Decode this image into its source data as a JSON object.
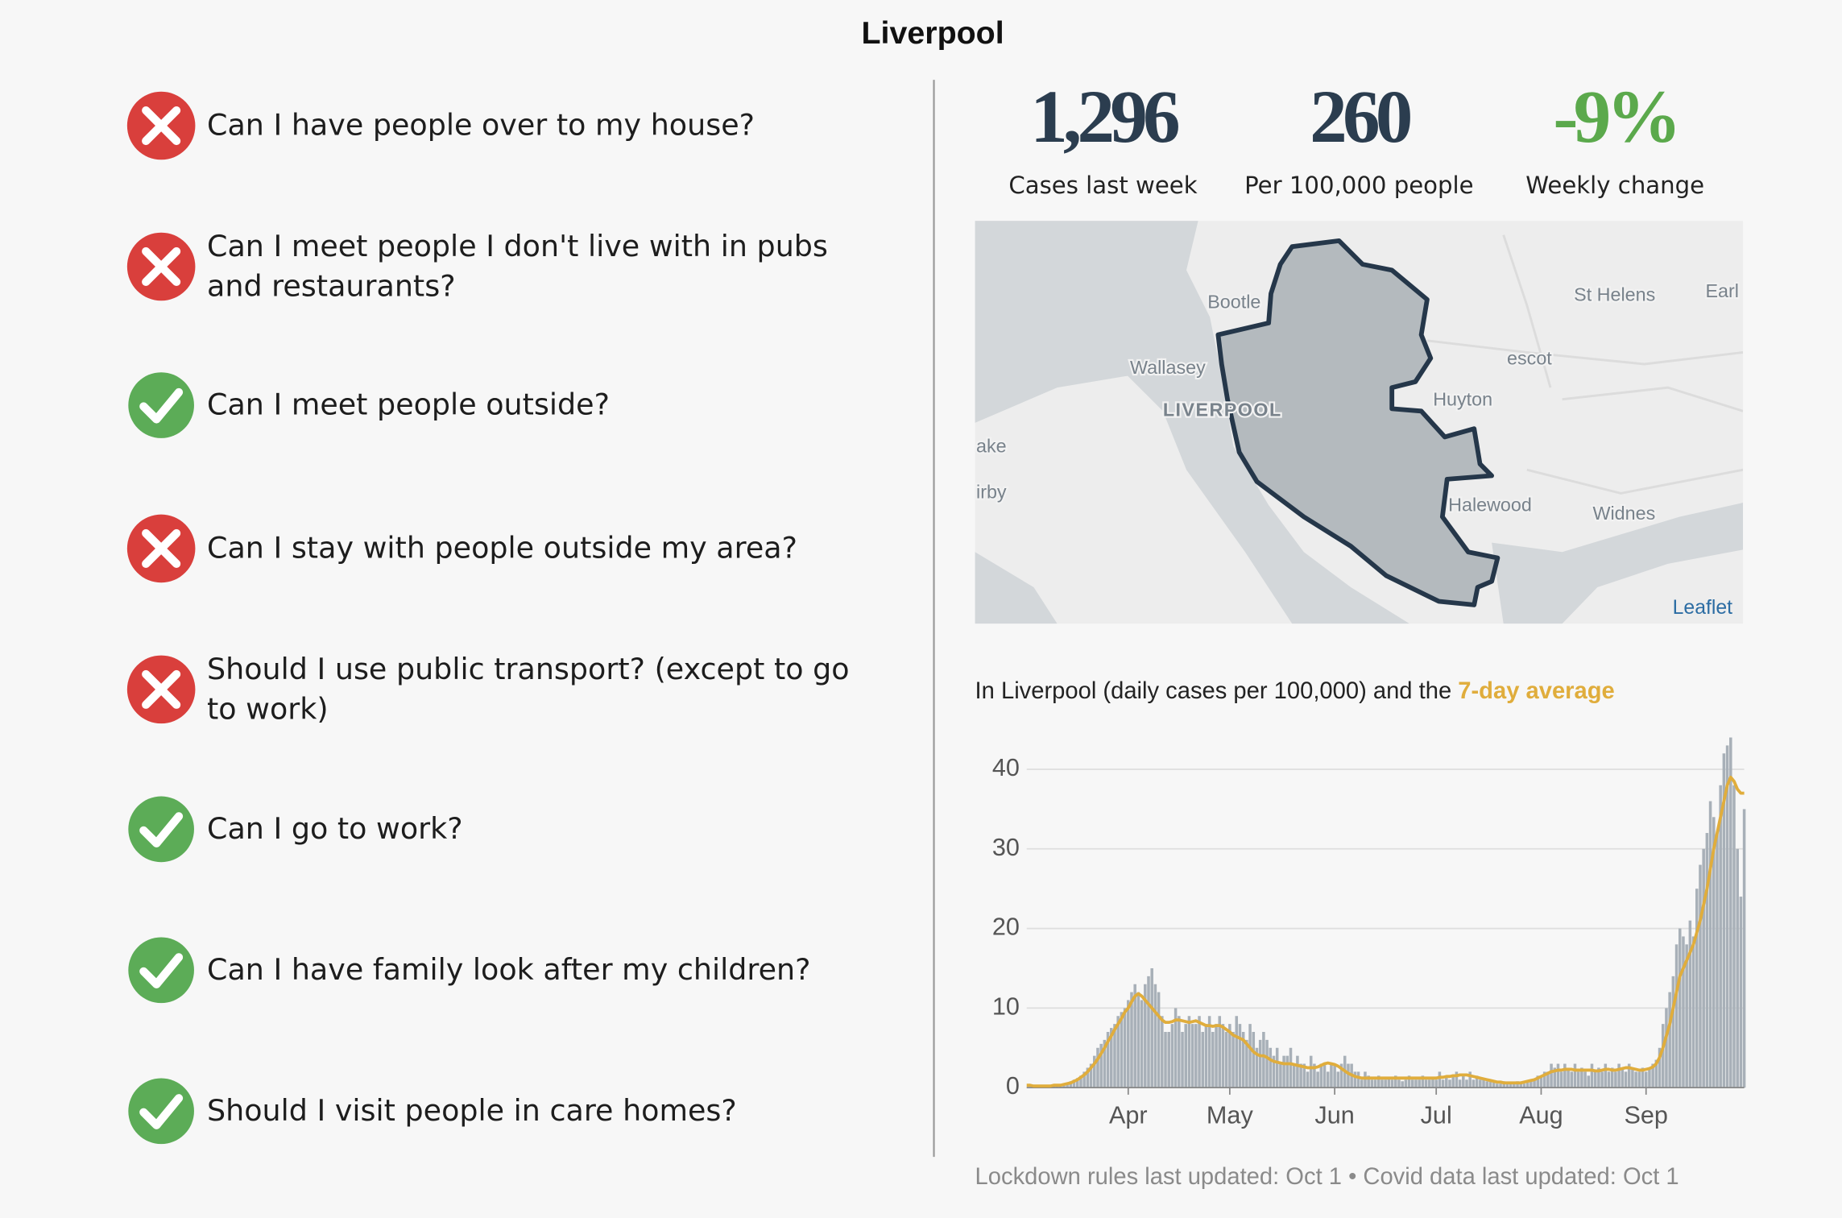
{
  "title": "Liverpool",
  "questions": [
    "Can I have people over to my house?",
    "Can I meet people I don't live with in pubs and restaurants?",
    "Can I meet people outside?",
    "Can I stay with people outside my area?",
    "Should I use public transport? (except to go to work)",
    "Can I go to work?",
    "Can I have family look after my children?",
    "Should I visit people in care homes?"
  ],
  "stats": [
    {
      "value": "1,296",
      "label": "Cases last week"
    },
    {
      "value": "260",
      "label": "Per 100,000 people"
    },
    {
      "value": "-9%",
      "label": "Weekly change"
    }
  ],
  "map": {
    "labels": [
      "Bootle",
      "St Helens",
      "Earl",
      "escot",
      "Wallasey",
      "LIVERPOOL",
      "Huyton",
      "ake",
      "irby",
      "Halewood",
      "Widnes"
    ],
    "attribution": "Leaflet"
  },
  "chart_data": {
    "type": "bar",
    "subtitle": "In Liverpool (daily cases per 100,000) and the ",
    "categories": [
      null,
      null,
      null,
      null,
      null,
      null,
      null,
      null,
      null,
      null,
      null,
      null,
      null,
      null,
      null,
      null,
      null,
      null,
      null,
      null,
      null,
      null,
      null,
      null,
      null,
      null,
      null,
      null,
      null,
      null,
      "Apr",
      null,
      null,
      null,
      null,
      null,
      null,
      null,
      null,
      null,
      null,
      null,
      null,
      null,
      null,
      null,
      null,
      null,
      null,
      null,
      null,
      null,
      null,
      null,
      null,
      null,
      null,
      null,
      null,
      null,
      "May",
      null,
      null,
      null,
      null,
      null,
      null,
      null,
      null,
      null,
      null,
      null,
      null,
      null,
      null,
      null,
      null,
      null,
      null,
      null,
      null,
      null,
      null,
      null,
      null,
      null,
      null,
      null,
      null,
      null,
      null,
      "Jun",
      null,
      null,
      null,
      null,
      null,
      null,
      null,
      null,
      null,
      null,
      null,
      null,
      null,
      null,
      null,
      null,
      null,
      null,
      null,
      null,
      null,
      null,
      null,
      null,
      null,
      null,
      null,
      null,
      null,
      "Jul",
      null,
      null,
      null,
      null,
      null,
      null,
      null,
      null,
      null,
      null,
      null,
      null,
      null,
      null,
      null,
      null,
      null,
      null,
      null,
      null,
      null,
      null,
      null,
      null,
      null,
      null,
      null,
      null,
      null,
      null,
      "Aug",
      null,
      null,
      null,
      null,
      null,
      null,
      null,
      null,
      null,
      null,
      null,
      null,
      null,
      null,
      null,
      null,
      null,
      null,
      null,
      null,
      null,
      null,
      null,
      null,
      null,
      null,
      null,
      null,
      null,
      null,
      "Sep",
      null,
      null,
      null,
      null,
      null,
      null,
      null,
      null,
      null,
      null,
      null,
      null,
      null,
      null,
      null,
      null,
      null,
      null,
      null,
      null,
      null,
      null,
      null,
      null,
      null,
      null,
      null,
      null,
      null
    ],
    "values": [
      0,
      0,
      0,
      0,
      0,
      0,
      0,
      0.2,
      0.2,
      0.3,
      0.3,
      0.5,
      0.5,
      0.8,
      1,
      1.2,
      1.5,
      2,
      2.5,
      3,
      4,
      5,
      5.5,
      6,
      7,
      7.5,
      8,
      9,
      9.5,
      10,
      11,
      12,
      13,
      12,
      11,
      13,
      14,
      15,
      13,
      12,
      9,
      7,
      7,
      8,
      10,
      9,
      7,
      8,
      9,
      8,
      8,
      9,
      7,
      8,
      9,
      7,
      8,
      9,
      8,
      7,
      8,
      7,
      9,
      8,
      7,
      6,
      8,
      7,
      5,
      6,
      7,
      6,
      5,
      4,
      5,
      3,
      4,
      4,
      5,
      3,
      4,
      3,
      3,
      2,
      4,
      3,
      2,
      3,
      3,
      2,
      3,
      3,
      2,
      3,
      4,
      3,
      3,
      2,
      2,
      1,
      2,
      1.5,
      1,
      1,
      1.5,
      1,
      1,
      1.2,
      1,
      1.5,
      1,
      0.8,
      1,
      1.5,
      1,
      1,
      1,
      1.5,
      1,
      1,
      1.3,
      1,
      2,
      1,
      1.5,
      1,
      1.5,
      2,
      1,
      1.5,
      1,
      2,
      1,
      1.5,
      1,
      1,
      0.8,
      1,
      0.8,
      0.5,
      0.5,
      0.8,
      0.5,
      0.7,
      0.5,
      0.8,
      0.5,
      0.5,
      0.7,
      0.8,
      1,
      1.5,
      1.5,
      2,
      2,
      3,
      2.5,
      3,
      2,
      3,
      2.5,
      2,
      3,
      2,
      2.5,
      2,
      1.5,
      3,
      2,
      2.5,
      2,
      3,
      2,
      2.5,
      2,
      3,
      2.5,
      2,
      3,
      2.5,
      2,
      2,
      2.5,
      2,
      2.5,
      3,
      3.5,
      5,
      8,
      10,
      12,
      14,
      18,
      20,
      19,
      18,
      21,
      19,
      25,
      28,
      30,
      32,
      36,
      34,
      32,
      38,
      42,
      43,
      44,
      38,
      30,
      24,
      35
    ],
    "color": "#a8b0b8",
    "average": {
      "name": "7-day average",
      "color": "#e0ad3c",
      "values": [
        0.3,
        0.3,
        0.2,
        0.2,
        0.2,
        0.2,
        0.2,
        0.2,
        0.3,
        0.3,
        0.3,
        0.4,
        0.5,
        0.6,
        0.8,
        1,
        1.3,
        1.6,
        2,
        2.5,
        3,
        3.6,
        4.3,
        5,
        5.8,
        6.5,
        7.3,
        8,
        8.7,
        9.5,
        10,
        10.8,
        11.5,
        11.8,
        11.5,
        11,
        10.5,
        10,
        9.5,
        9,
        8.5,
        8.2,
        8.2,
        8.3,
        8.5,
        8.5,
        8.4,
        8.3,
        8.2,
        8.3,
        8.4,
        8.2,
        8,
        7.8,
        7.8,
        7.7,
        7.8,
        7.8,
        7.6,
        7.3,
        7,
        6.6,
        6.4,
        6.2,
        6,
        5.5,
        5,
        4.5,
        4.2,
        4,
        4,
        3.8,
        3.5,
        3.3,
        3.2,
        3.1,
        3,
        3,
        3,
        2.9,
        2.8,
        2.7,
        2.6,
        2.5,
        2.5,
        2.5,
        2.6,
        2.8,
        3,
        3.1,
        3,
        2.9,
        2.7,
        2.4,
        2.1,
        1.8,
        1.6,
        1.4,
        1.3,
        1.2,
        1.2,
        1.2,
        1.2,
        1.2,
        1.2,
        1.2,
        1.2,
        1.2,
        1.2,
        1.2,
        1.2,
        1.2,
        1.2,
        1.2,
        1.2,
        1.2,
        1.2,
        1.2,
        1.2,
        1.2,
        1.2,
        1.2,
        1.3,
        1.3,
        1.4,
        1.4,
        1.5,
        1.5,
        1.6,
        1.6,
        1.6,
        1.5,
        1.4,
        1.3,
        1.2,
        1.1,
        1,
        0.9,
        0.8,
        0.7,
        0.7,
        0.6,
        0.6,
        0.6,
        0.6,
        0.6,
        0.6,
        0.7,
        0.8,
        0.9,
        1,
        1.2,
        1.4,
        1.6,
        1.8,
        2,
        2.1,
        2.2,
        2.2,
        2.3,
        2.3,
        2.3,
        2.2,
        2.2,
        2.2,
        2.2,
        2.2,
        2.2,
        2.1,
        2.1,
        2.2,
        2.3,
        2.3,
        2.2,
        2.2,
        2.3,
        2.4,
        2.5,
        2.5,
        2.4,
        2.3,
        2.2,
        2.2,
        2.3,
        2.4,
        2.6,
        3,
        3.8,
        5,
        6.5,
        8,
        10,
        12,
        14,
        15,
        16,
        17,
        18,
        19.5,
        21,
        23,
        25,
        27.5,
        30,
        32,
        34,
        36,
        38,
        39,
        38.5,
        37.5,
        37,
        37
      ]
    },
    "ylim": [
      0,
      45
    ],
    "yticks": [
      0,
      10,
      20,
      30,
      40
    ],
    "grid": true
  },
  "footer": "Lockdown rules last updated: Oct 1 • Covid data last updated: Oct 1"
}
